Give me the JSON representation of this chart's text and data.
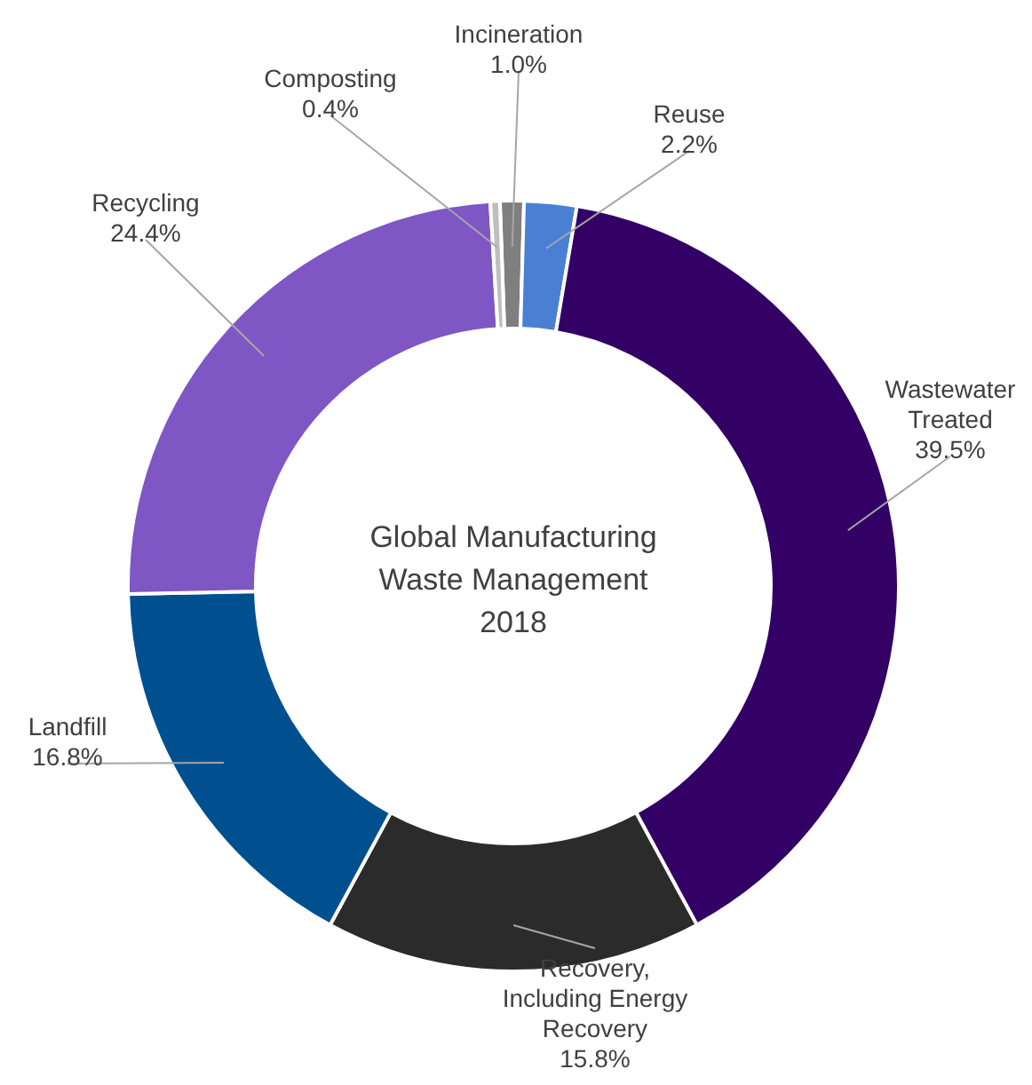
{
  "chart_data": {
    "type": "donut",
    "title": "Global Manufacturing Waste Management 2018",
    "categories": [
      "Incineration",
      "Reuse",
      "Wastewater Treated",
      "Recovery, Including Energy Recovery",
      "Landfill",
      "Recycling",
      "Composting"
    ],
    "values": [
      1.0,
      2.2,
      39.5,
      15.8,
      16.8,
      24.4,
      0.4
    ],
    "colors": [
      "#7f7f7f",
      "#4a7fd4",
      "#330066",
      "#2b2b2b",
      "#00508f",
      "#7e57c5",
      "#bfbfbf"
    ],
    "value_labels": [
      "1.0%",
      "2.2%",
      "39.5%",
      "15.8%",
      "16.8%",
      "24.4%",
      "0.4%"
    ]
  }
}
